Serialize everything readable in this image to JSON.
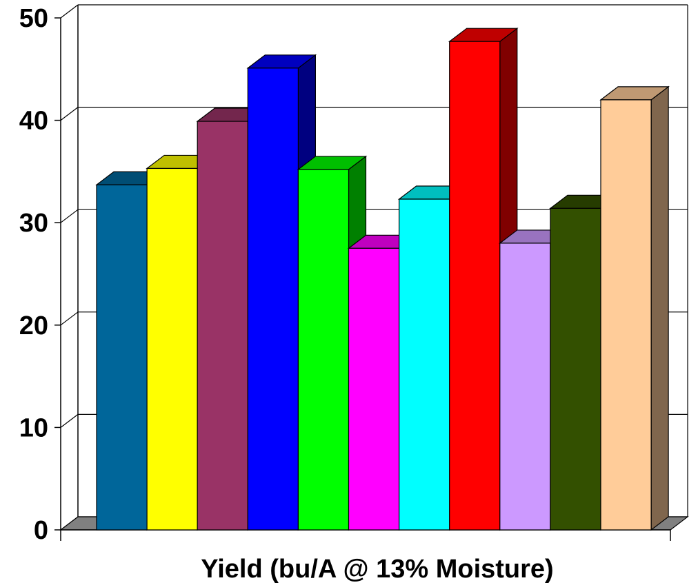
{
  "chart_data": {
    "type": "bar",
    "style": "3d-column",
    "title": "",
    "xlabel": "Yield (bu/A @ 13% Moisture)",
    "ylabel": "",
    "ylim": [
      0,
      50
    ],
    "yticks": [
      "0",
      "10",
      "20",
      "30",
      "40",
      "50"
    ],
    "grid": true,
    "legend": "none",
    "values": [
      33.7,
      35.3,
      39.9,
      45.1,
      35.2,
      27.5,
      32.3,
      47.7,
      28.0,
      31.4,
      42.0
    ],
    "colors": [
      "#00669A",
      "#FFFF00",
      "#993366",
      "#0000FF",
      "#00FF00",
      "#FF00FF",
      "#00FFFF",
      "#FF0000",
      "#CC99FF",
      "#335000",
      "#FFCC99"
    ]
  }
}
